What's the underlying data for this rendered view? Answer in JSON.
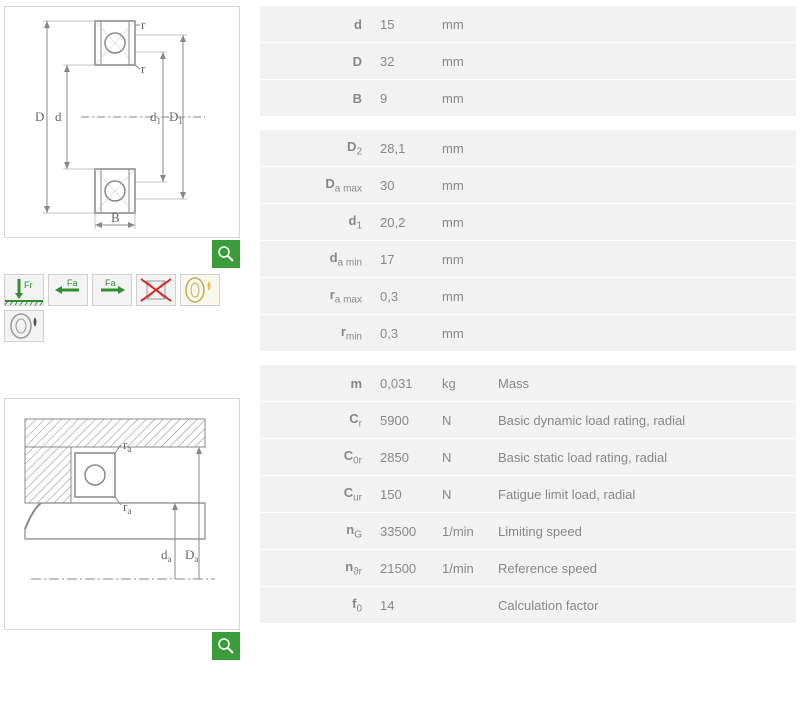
{
  "colors": {
    "table_bg": "#f2f2f2",
    "text": "#888888",
    "accent_green": "#3a9d3a",
    "border": "#d5d5d5",
    "red_x": "#d22",
    "oil_yellow": "#e8c44a"
  },
  "tables": {
    "main_dims": [
      {
        "symbol": "d",
        "value": "15",
        "unit": "mm"
      },
      {
        "symbol": "D",
        "value": "32",
        "unit": "mm"
      },
      {
        "symbol": "B",
        "value": "9",
        "unit": "mm"
      }
    ],
    "aux_dims": [
      {
        "symbol": "D",
        "sub": "2",
        "value": "28,1",
        "unit": "mm"
      },
      {
        "symbol": "D",
        "sub": "a max",
        "value": "30",
        "unit": "mm"
      },
      {
        "symbol": "d",
        "sub": "1",
        "value": "20,2",
        "unit": "mm"
      },
      {
        "symbol": "d",
        "sub": "a min",
        "value": "17",
        "unit": "mm"
      },
      {
        "symbol": "r",
        "sub": "a max",
        "value": "0,3",
        "unit": "mm"
      },
      {
        "symbol": "r",
        "sub": "min",
        "value": "0,3",
        "unit": "mm"
      }
    ],
    "perf": [
      {
        "symbol": "m",
        "sub": "",
        "value": "0,031",
        "unit": "kg",
        "desc": "Mass"
      },
      {
        "symbol": "C",
        "sub": "r",
        "value": "5900",
        "unit": "N",
        "desc": "Basic dynamic load rating, radial"
      },
      {
        "symbol": "C",
        "sub": "0r",
        "value": "2850",
        "unit": "N",
        "desc": "Basic static load rating, radial"
      },
      {
        "symbol": "C",
        "sub": "ur",
        "value": "150",
        "unit": "N",
        "desc": "Fatigue limit load, radial"
      },
      {
        "symbol": "n",
        "sub": "G",
        "value": "33500",
        "unit": "1/min",
        "desc": "Limiting speed"
      },
      {
        "symbol": "n",
        "sub": "ϑr",
        "value": "21500",
        "unit": "1/min",
        "desc": "Reference speed"
      },
      {
        "symbol": "f",
        "sub": "0",
        "value": "14",
        "unit": "",
        "desc": "Calculation factor"
      }
    ]
  },
  "diagram1_labels": {
    "D": "D",
    "d": "d",
    "d1": "d",
    "d1sub": "1",
    "D1": "D",
    "D1sub": "1",
    "B": "B",
    "r": "r"
  },
  "diagram2_labels": {
    "ra": "r",
    "rasub": "a",
    "da": "d",
    "dasub": "a",
    "Da": "D",
    "Dasub": "a"
  },
  "feature_icons": {
    "radial_load": "Fr",
    "axial_load_a": "Fa",
    "axial_load_b": "Fa"
  }
}
